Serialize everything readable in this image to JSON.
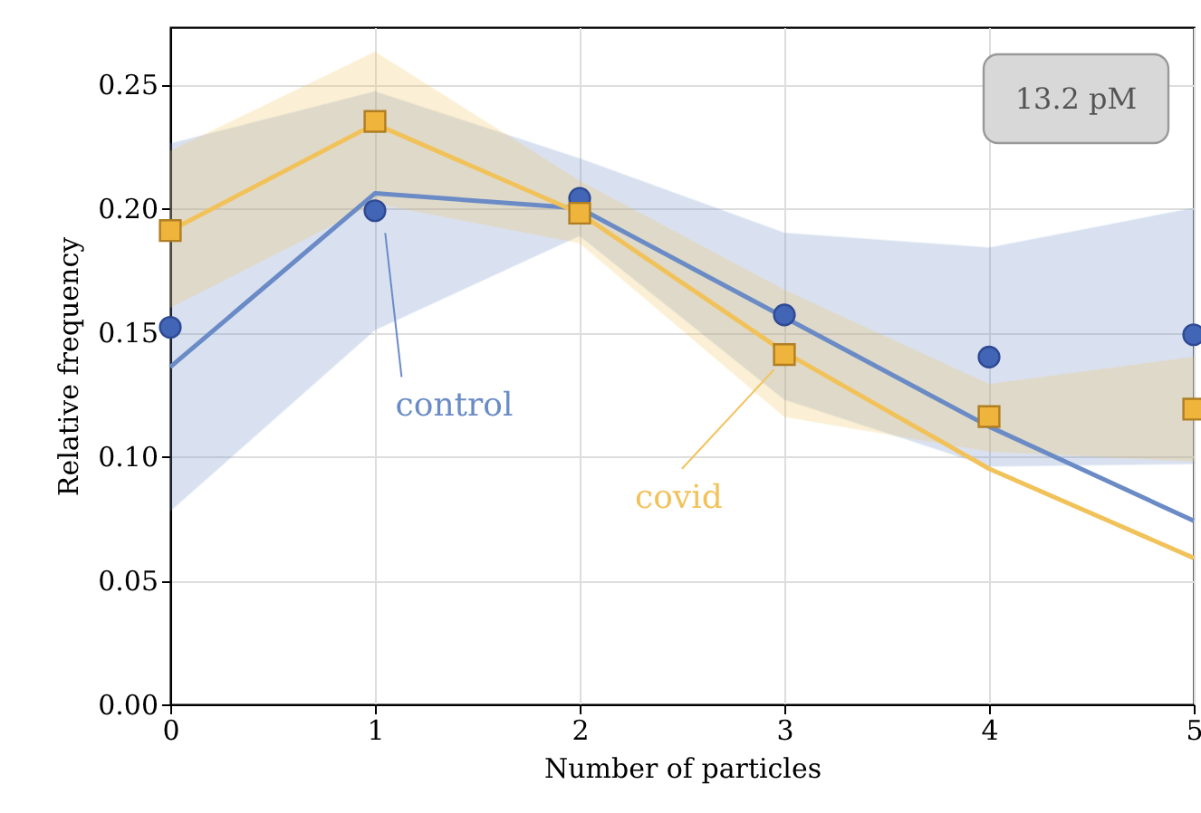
{
  "chart_data": {
    "type": "line",
    "xlabel": "Number of particles",
    "ylabel": "Relative frequency",
    "x": [
      0,
      1,
      2,
      3,
      4,
      5
    ],
    "legend": false,
    "xlim": [
      0,
      5
    ],
    "xticks": [
      0,
      1,
      2,
      3,
      4,
      5
    ],
    "ylim": [
      0,
      0.273
    ],
    "yticks": [
      {
        "value": 0,
        "label": "0.00"
      },
      {
        "value": 0.05,
        "label": "0.05"
      },
      {
        "value": 0.1,
        "label": "0.10"
      },
      {
        "value": 0.15,
        "label": "0.15"
      },
      {
        "value": 0.2,
        "label": "0.20"
      },
      {
        "value": 0.25,
        "label": "0.25"
      }
    ],
    "grid": true,
    "annotations": [
      "13.2 pM"
    ],
    "series": [
      {
        "name": "control",
        "marker": "none",
        "line_style": "solid",
        "color": "#6a8bc6",
        "values": [
          0.136,
          0.206,
          0.2,
          0.156,
          0.112,
          0.074
        ],
        "lower": [
          0.078,
          0.151,
          0.189,
          0.123,
          0.096,
          0.097
        ],
        "upper": [
          0.226,
          0.247,
          0.22,
          0.19,
          0.184,
          0.2
        ]
      },
      {
        "name": "covid",
        "marker": "none",
        "line_style": "solid",
        "color": "#f2c25a",
        "values": [
          0.191,
          0.234,
          0.198,
          0.142,
          0.095,
          0.059
        ],
        "lower": [
          0.16,
          0.202,
          0.186,
          0.116,
          0.102,
          0.098
        ],
        "upper": [
          0.223,
          0.263,
          0.211,
          0.167,
          0.129,
          0.14
        ]
      },
      {
        "type": "scatter",
        "marker": "circle",
        "color": "#4265b6",
        "values": [
          0.152,
          0.199,
          0.204,
          0.157,
          0.14,
          0.149
        ]
      },
      {
        "type": "scatter",
        "marker": "square",
        "color": "#efb43c",
        "values": [
          0.191,
          0.235,
          0.198,
          0.141,
          0.116,
          0.119
        ]
      }
    ]
  }
}
